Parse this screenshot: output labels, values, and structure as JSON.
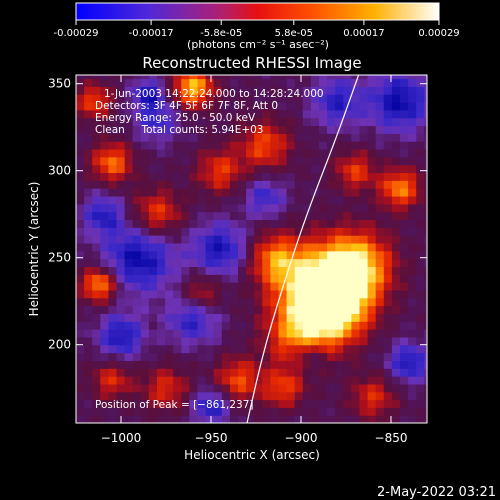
{
  "colorbar": {
    "ticks": [
      {
        "value": -0.00029,
        "label": "-0.00029"
      },
      {
        "value": -0.00017,
        "label": "-0.00017"
      },
      {
        "value": -5.8e-05,
        "label": "-5.8e-05"
      },
      {
        "value": 5.8e-05,
        "label": "5.8e-05"
      },
      {
        "value": 0.00017,
        "label": "0.00017"
      },
      {
        "value": 0.00029,
        "label": "0.00029"
      }
    ],
    "range": [
      -0.00029,
      0.00029
    ]
  },
  "chart_data": {
    "type": "heatmap",
    "title": "Reconstructed RHESSI Image",
    "units_label": "(photons cm⁻² s⁻¹ asec⁻²)",
    "xlabel": "Heliocentric X (arcsec)",
    "ylabel": "Heliocentric Y (arcsec)",
    "xlim": [
      -1025,
      -830
    ],
    "ylim": [
      155,
      355
    ],
    "x_ticks": [
      -1000,
      -950,
      -900,
      -850
    ],
    "x_tick_labels": [
      "−1000",
      "−950",
      "−900",
      "−850"
    ],
    "y_ticks": [
      200,
      250,
      300,
      350
    ],
    "y_tick_labels": [
      "200",
      "250",
      "300",
      "350"
    ],
    "annotations": [
      "1-Jun-2003 14:22:24.000 to 14:28:24.000",
      "Detectors: 3F 4F 5F 6F 7F 8F, Att 0",
      "Energy Range: 25.0 - 50.0 keV",
      "Clean     Total counts: 5.94E+03"
    ],
    "peak_label": "Position of Peak = [−861,237]",
    "peak": {
      "x": -861,
      "y": 237
    },
    "limb_arc": [
      [
        -930,
        155
      ],
      [
        -920,
        200
      ],
      [
        -905,
        250
      ],
      [
        -895,
        280
      ],
      [
        -880,
        320
      ],
      [
        -868,
        355
      ]
    ],
    "blobs": [
      {
        "x": -870,
        "y": 245,
        "s": 14,
        "v": 1.0
      },
      {
        "x": -895,
        "y": 235,
        "s": 16,
        "v": 0.85
      },
      {
        "x": -880,
        "y": 220,
        "s": 13,
        "v": 0.9
      },
      {
        "x": -900,
        "y": 205,
        "s": 13,
        "v": 0.7
      },
      {
        "x": -915,
        "y": 250,
        "s": 10,
        "v": 0.55
      },
      {
        "x": -960,
        "y": 348,
        "s": 8,
        "v": 0.85
      },
      {
        "x": -1012,
        "y": 235,
        "s": 7,
        "v": 0.8
      },
      {
        "x": -1005,
        "y": 305,
        "s": 8,
        "v": 0.65
      },
      {
        "x": -980,
        "y": 275,
        "s": 10,
        "v": 0.55
      },
      {
        "x": -945,
        "y": 300,
        "s": 9,
        "v": 0.5
      },
      {
        "x": -920,
        "y": 315,
        "s": 10,
        "v": 0.55
      },
      {
        "x": -935,
        "y": 180,
        "s": 9,
        "v": 0.55
      },
      {
        "x": -975,
        "y": 175,
        "s": 9,
        "v": 0.45
      },
      {
        "x": -1005,
        "y": 180,
        "s": 8,
        "v": 0.45
      },
      {
        "x": -845,
        "y": 290,
        "s": 8,
        "v": 0.7
      },
      {
        "x": -870,
        "y": 300,
        "s": 8,
        "v": 0.5
      },
      {
        "x": -860,
        "y": 170,
        "s": 9,
        "v": 0.45
      },
      {
        "x": -910,
        "y": 175,
        "s": 8,
        "v": 0.5
      },
      {
        "x": -955,
        "y": 230,
        "s": 8,
        "v": 0.45
      },
      {
        "x": -1015,
        "y": 340,
        "s": 7,
        "v": 0.55
      }
    ],
    "dips": [
      {
        "x": -990,
        "y": 250,
        "s": 14,
        "v": 0.9
      },
      {
        "x": -945,
        "y": 255,
        "s": 11,
        "v": 0.8
      },
      {
        "x": -960,
        "y": 215,
        "s": 10,
        "v": 0.7
      },
      {
        "x": -1000,
        "y": 205,
        "s": 9,
        "v": 0.8
      },
      {
        "x": -950,
        "y": 165,
        "s": 7,
        "v": 0.8
      },
      {
        "x": -845,
        "y": 340,
        "s": 12,
        "v": 0.9
      },
      {
        "x": -880,
        "y": 340,
        "s": 10,
        "v": 0.7
      },
      {
        "x": -840,
        "y": 190,
        "s": 8,
        "v": 0.8
      },
      {
        "x": -1010,
        "y": 275,
        "s": 8,
        "v": 0.7
      },
      {
        "x": -920,
        "y": 285,
        "s": 8,
        "v": 0.6
      },
      {
        "x": -980,
        "y": 330,
        "s": 9,
        "v": 0.6
      },
      {
        "x": -985,
        "y": 345,
        "s": 6,
        "v": 0.7
      },
      {
        "x": -895,
        "y": 195,
        "s": 7,
        "v": 0.55
      }
    ]
  },
  "footer": {
    "date": "2-May-2022 03:21"
  }
}
